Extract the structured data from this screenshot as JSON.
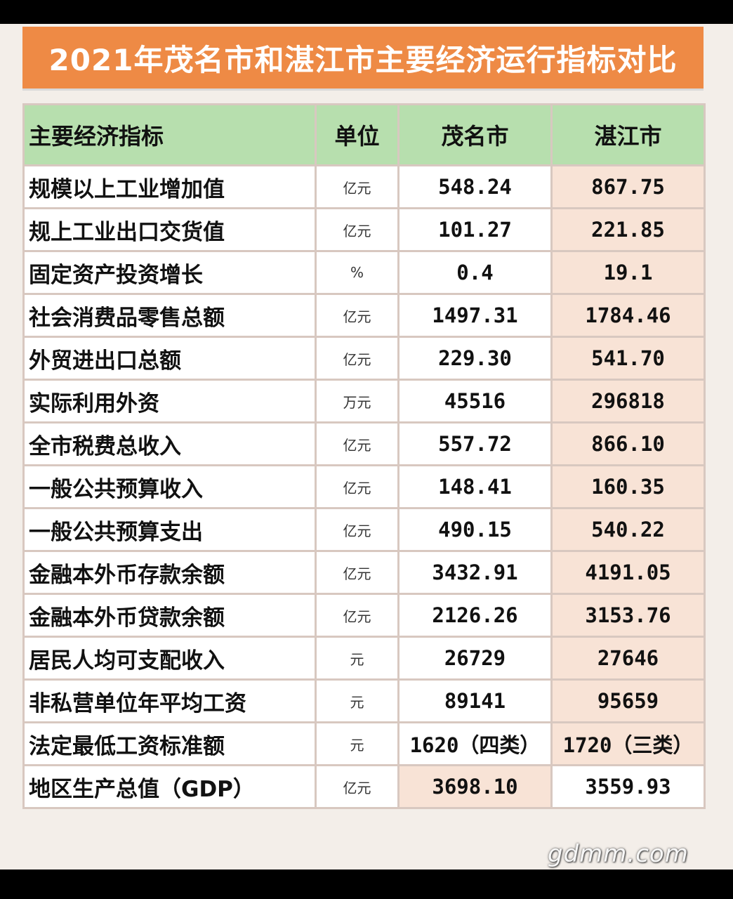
{
  "title": "2021年茂名市和湛江市主要经济运行指标对比",
  "header": {
    "indicator": "主要经济指标",
    "unit": "单位",
    "maoming": "茂名市",
    "zhanjiang": "湛江市"
  },
  "rows": [
    {
      "indicator": "规模以上工业增加值",
      "unit": "亿元",
      "maoming": "548.24",
      "zhanjiang": "867.75"
    },
    {
      "indicator": "规上工业出口交货值",
      "unit": "亿元",
      "maoming": "101.27",
      "zhanjiang": "221.85"
    },
    {
      "indicator": "固定资产投资增长",
      "unit": "%",
      "maoming": "0.4",
      "zhanjiang": "19.1"
    },
    {
      "indicator": "社会消费品零售总额",
      "unit": "亿元",
      "maoming": "1497.31",
      "zhanjiang": "1784.46"
    },
    {
      "indicator": "外贸进出口总额",
      "unit": "亿元",
      "maoming": "229.30",
      "zhanjiang": "541.70"
    },
    {
      "indicator": "实际利用外资",
      "unit": "万元",
      "maoming": "45516",
      "zhanjiang": "296818"
    },
    {
      "indicator": "全市税费总收入",
      "unit": "亿元",
      "maoming": "557.72",
      "zhanjiang": "866.10"
    },
    {
      "indicator": "一般公共预算收入",
      "unit": "亿元",
      "maoming": "148.41",
      "zhanjiang": "160.35"
    },
    {
      "indicator": "一般公共预算支出",
      "unit": "亿元",
      "maoming": "490.15",
      "zhanjiang": "540.22"
    },
    {
      "indicator": "金融本外币存款余额",
      "unit": "亿元",
      "maoming": "3432.91",
      "zhanjiang": "4191.05"
    },
    {
      "indicator": "金融本外币贷款余额",
      "unit": "亿元",
      "maoming": "2126.26",
      "zhanjiang": "3153.76"
    },
    {
      "indicator": "居民人均可支配收入",
      "unit": "元",
      "maoming": "26729",
      "zhanjiang": "27646"
    },
    {
      "indicator": "非私营单位年平均工资",
      "unit": "元",
      "maoming": "89141",
      "zhanjiang": "95659"
    },
    {
      "indicator": "法定最低工资标准额",
      "unit": "元",
      "maoming": "1620（四类）",
      "zhanjiang": "1720（三类）"
    },
    {
      "indicator": "地区生产总值（GDP）",
      "unit": "亿元",
      "maoming": "3698.10",
      "zhanjiang": "3559.93"
    }
  ],
  "watermark": "gdmm.com",
  "colors": {
    "title_bg": "#ee8a45",
    "header_bg": "#b7dfae",
    "highlight_bg": "#f8e3d6"
  }
}
